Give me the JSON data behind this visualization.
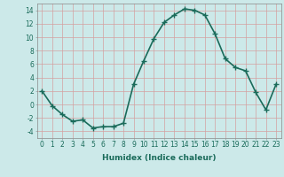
{
  "x": [
    0,
    1,
    2,
    3,
    4,
    5,
    6,
    7,
    8,
    9,
    10,
    11,
    12,
    13,
    14,
    15,
    16,
    17,
    18,
    19,
    20,
    21,
    22,
    23
  ],
  "y": [
    2,
    -0.2,
    -1.5,
    -2.5,
    -2.3,
    -3.5,
    -3.3,
    -3.3,
    -2.8,
    3.0,
    6.5,
    9.8,
    12.2,
    13.3,
    14.2,
    14.0,
    13.3,
    10.5,
    6.8,
    5.5,
    5.0,
    1.8,
    -0.8,
    3.0
  ],
  "line_color": "#1a6b5a",
  "marker": "+",
  "markersize": 4,
  "linewidth": 1.2,
  "background_color": "#cce9e9",
  "grid_color": "#b8d8d8",
  "xlabel": "Humidex (Indice chaleur)",
  "xlim": [
    -0.5,
    23.5
  ],
  "ylim": [
    -5,
    15
  ],
  "yticks": [
    -4,
    -2,
    0,
    2,
    4,
    6,
    8,
    10,
    12,
    14
  ],
  "xticks": [
    0,
    1,
    2,
    3,
    4,
    5,
    6,
    7,
    8,
    9,
    10,
    11,
    12,
    13,
    14,
    15,
    16,
    17,
    18,
    19,
    20,
    21,
    22,
    23
  ],
  "xlabel_fontsize": 6.5,
  "tick_fontsize": 5.5
}
